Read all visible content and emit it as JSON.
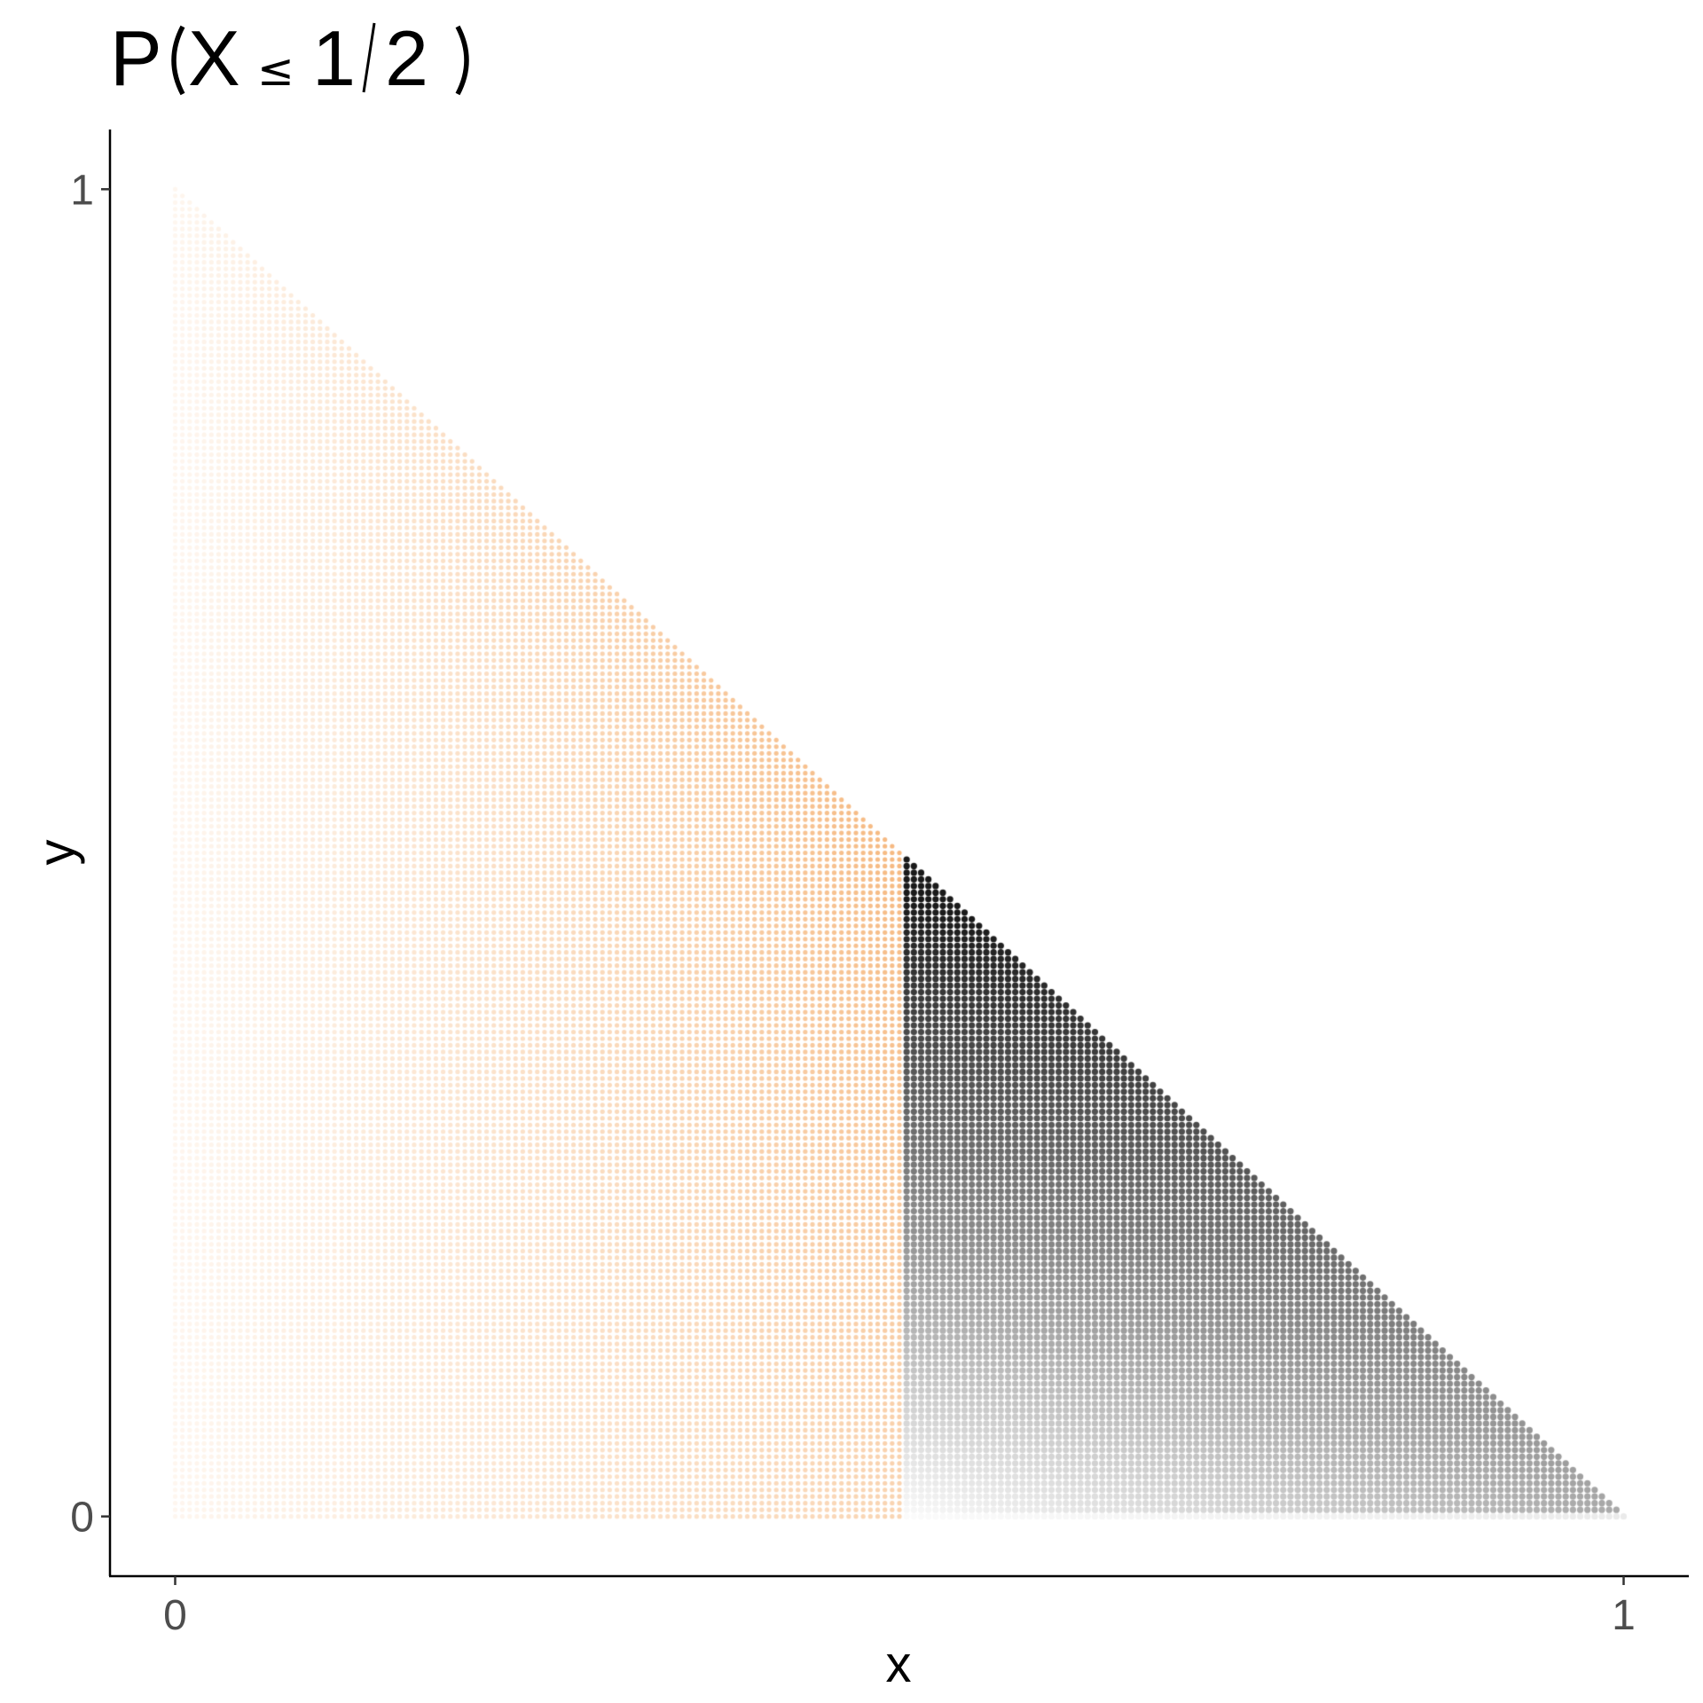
{
  "chart_data": {
    "type": "scatter",
    "title": {
      "prefix": "P",
      "variable": "X",
      "operator": "≤",
      "numerator": "1",
      "slash": "/",
      "denominator": "2"
    },
    "xlabel": "x",
    "ylabel": "y",
    "xlim": [
      -0.045,
      1.045
    ],
    "ylim": [
      -0.045,
      1.045
    ],
    "x_ticks": [
      {
        "value": 0,
        "label": "0"
      },
      {
        "value": 1,
        "label": "1"
      }
    ],
    "y_ticks": [
      {
        "value": 0,
        "label": "0"
      },
      {
        "value": 1,
        "label": "1"
      }
    ],
    "grid": false,
    "legend": "none",
    "region": {
      "description_support": "triangle x >= 0, y >= 0, x + y <= 1",
      "grid_step": 0.005,
      "threshold_x": 0.5
    },
    "series": [
      {
        "condition": "x <= 0.5",
        "color": "#f5b57a",
        "alpha_increases_with": "x"
      },
      {
        "condition": "x > 0.5",
        "color": "#1a1a1a",
        "alpha_increases_with": "y"
      }
    ]
  }
}
